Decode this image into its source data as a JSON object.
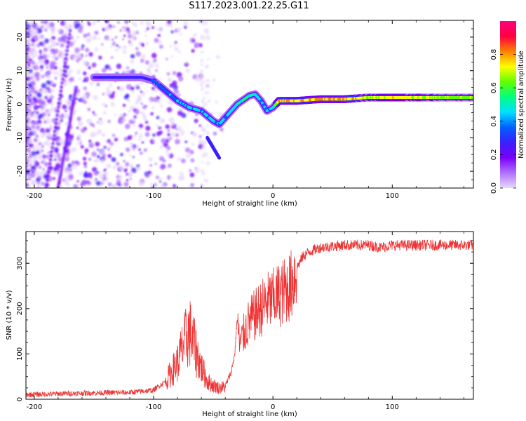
{
  "title": "S117.2023.001.22.25.G11",
  "colormap": [
    "#e8d8ff",
    "#b070ff",
    "#7a00ff",
    "#3a20ff",
    "#0060ff",
    "#00e0ff",
    "#00ff80",
    "#60ff00",
    "#ffff00",
    "#ff8000",
    "#ff0040",
    "#ff0080"
  ],
  "series_color": "#ee3333",
  "chart_data": [
    {
      "type": "heatmap",
      "xlabel": "Height of straight line (km)",
      "ylabel": "Frequency (Hz)",
      "xlim": [
        -207,
        168
      ],
      "ylim": [
        -25,
        25
      ],
      "xticks": [
        -200,
        -100,
        0,
        100
      ],
      "yticks": [
        -20,
        -10,
        0,
        10,
        20
      ],
      "colorbar": {
        "label": "Normalized spectral amplitude",
        "range": [
          0.0,
          1.0
        ],
        "ticks": [
          0.0,
          0.2,
          0.4,
          0.6,
          0.8
        ]
      },
      "ridge": {
        "x": [
          -150,
          -130,
          -110,
          -100,
          -90,
          -80,
          -70,
          -60,
          -50,
          -45,
          -40,
          -30,
          -20,
          -15,
          -10,
          -5,
          0,
          5,
          20,
          40,
          60,
          80,
          100,
          120,
          140,
          168
        ],
        "y": [
          8,
          8,
          8,
          7,
          4,
          1,
          -1,
          -2,
          -5,
          -6,
          -4,
          0,
          2.5,
          3,
          1,
          -2,
          -1,
          1,
          1,
          1.5,
          1.5,
          2,
          2,
          2,
          2,
          2
        ],
        "amplitude": [
          0.25,
          0.3,
          0.3,
          0.35,
          0.4,
          0.45,
          0.45,
          0.45,
          0.45,
          0.45,
          0.45,
          0.55,
          0.55,
          0.5,
          0.45,
          0.45,
          0.5,
          0.9,
          0.8,
          0.85,
          0.85,
          0.75,
          0.8,
          0.75,
          0.7,
          0.7
        ]
      },
      "branch": {
        "x": [
          -55,
          -45
        ],
        "y": [
          -10,
          -16
        ]
      }
    },
    {
      "type": "line",
      "xlabel": "Height of straight line (km)",
      "ylabel": "SNR (10 * v/v)",
      "xlim": [
        -207,
        168
      ],
      "ylim": [
        0,
        370
      ],
      "xticks": [
        -200,
        -100,
        0,
        100
      ],
      "yticks": [
        0,
        100,
        200,
        300
      ],
      "series": [
        {
          "x": [
            -207,
            -180,
            -150,
            -120,
            -100,
            -90,
            -80,
            -75,
            -70,
            -65,
            -60,
            -55,
            -50,
            -45,
            -40,
            -35,
            -32,
            -30,
            -28,
            -25,
            -20,
            -15,
            -10,
            -5,
            0,
            5,
            10,
            15,
            20,
            25,
            30,
            40,
            60,
            80,
            90,
            100,
            120,
            140,
            168
          ],
          "y": [
            10,
            12,
            14,
            15,
            20,
            40,
            80,
            120,
            150,
            110,
            70,
            40,
            30,
            25,
            28,
            60,
            100,
            180,
            120,
            140,
            170,
            185,
            200,
            215,
            220,
            230,
            240,
            250,
            290,
            315,
            325,
            335,
            340,
            340,
            335,
            340,
            340,
            340,
            340
          ]
        }
      ]
    }
  ]
}
